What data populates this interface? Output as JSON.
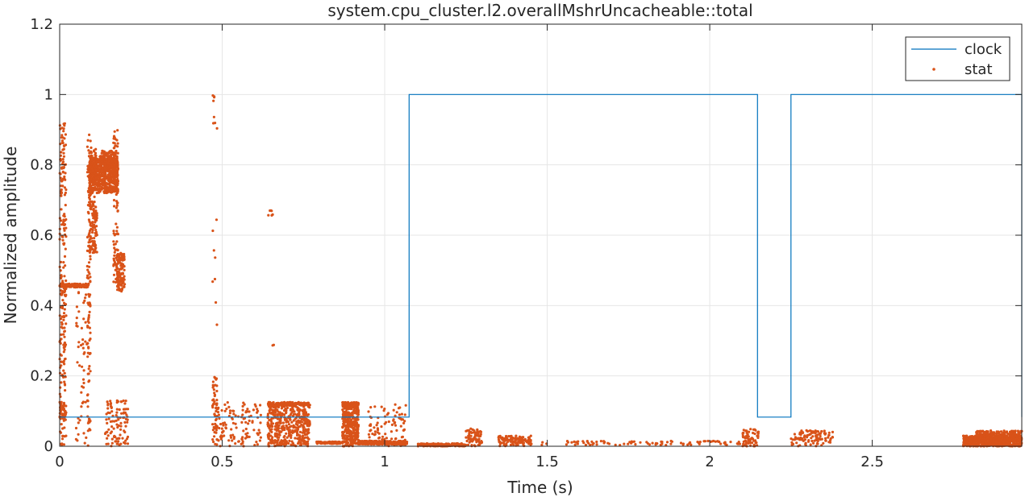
{
  "chart_data": {
    "type": "line",
    "title": "system.cpu_cluster.l2.overallMshrUncacheable::total",
    "xlabel": "Time (s)",
    "ylabel": "Normalized amplitude",
    "xlim": [
      0,
      2.96
    ],
    "ylim": [
      0,
      1.2
    ],
    "x_ticks": [
      0,
      0.5,
      1,
      1.5,
      2,
      2.5
    ],
    "x_tick_labels": [
      "0",
      "0.5",
      "1",
      "1.5",
      "2",
      "2.5"
    ],
    "y_ticks": [
      0,
      0.2,
      0.4,
      0.6,
      0.8,
      1,
      1.2
    ],
    "y_tick_labels": [
      "0",
      "0.2",
      "0.4",
      "0.6",
      "0.8",
      "1",
      "1.2"
    ],
    "grid": true,
    "legend": {
      "location": "top-right",
      "entries": [
        "clock",
        "stat"
      ]
    },
    "colors": {
      "clock": "#0072bd",
      "stat": "#d95319",
      "grid": "#e6e6e6",
      "axes": "#262626"
    },
    "series": [
      {
        "name": "clock",
        "style": "step-line",
        "points": [
          [
            0,
            0.083
          ],
          [
            1.075,
            0.083
          ],
          [
            1.075,
            1.0
          ],
          [
            2.147,
            1.0
          ],
          [
            2.147,
            0.083
          ],
          [
            2.25,
            0.083
          ],
          [
            2.25,
            1.0
          ],
          [
            2.96,
            1.0
          ],
          [
            2.96,
            0.083
          ]
        ]
      },
      {
        "name": "stat",
        "style": "markers",
        "clusters": [
          {
            "x": [
              0.0,
              0.02
            ],
            "y": [
              0.0,
              0.92
            ],
            "n": 240
          },
          {
            "x": [
              0.0,
              0.09
            ],
            "y": [
              0.452,
              0.462
            ],
            "n": 140
          },
          {
            "x": [
              0.0,
              0.02
            ],
            "y": [
              0.08,
              0.12
            ],
            "n": 40
          },
          {
            "x": [
              0.05,
              0.09
            ],
            "y": [
              0.0,
              0.45
            ],
            "n": 60
          },
          {
            "x": [
              0.085,
              0.095
            ],
            "y": [
              0.0,
              0.92
            ],
            "n": 90
          },
          {
            "x": [
              0.09,
              0.115
            ],
            "y": [
              0.55,
              0.85
            ],
            "n": 200
          },
          {
            "x": [
              0.09,
              0.18
            ],
            "y": [
              0.72,
              0.82
            ],
            "n": 600
          },
          {
            "x": [
              0.12,
              0.18
            ],
            "y": [
              0.78,
              0.84
            ],
            "n": 120
          },
          {
            "x": [
              0.165,
              0.18
            ],
            "y": [
              0.46,
              0.9
            ],
            "n": 90
          },
          {
            "x": [
              0.175,
              0.2
            ],
            "y": [
              0.44,
              0.55
            ],
            "n": 120
          },
          {
            "x": [
              0.14,
              0.21
            ],
            "y": [
              0.0,
              0.13
            ],
            "n": 100
          },
          {
            "x": [
              0.47,
              0.485
            ],
            "y": [
              0.0,
              0.2
            ],
            "n": 50
          },
          {
            "x": [
              0.47,
              0.485
            ],
            "y": [
              0.9,
              1.0
            ],
            "n": 8
          },
          {
            "x": [
              0.47,
              0.485
            ],
            "y": [
              0.33,
              0.66
            ],
            "n": 8
          },
          {
            "x": [
              0.48,
              0.62
            ],
            "y": [
              0.0,
              0.125
            ],
            "n": 120
          },
          {
            "x": [
              0.64,
              0.66
            ],
            "y": [
              0.65,
              0.68
            ],
            "n": 6
          },
          {
            "x": [
              0.64,
              0.66
            ],
            "y": [
              0.28,
              0.29
            ],
            "n": 2
          },
          {
            "x": [
              0.64,
              0.77
            ],
            "y": [
              0.0,
              0.125
            ],
            "n": 450
          },
          {
            "x": [
              0.64,
              0.77
            ],
            "y": [
              0.115,
              0.125
            ],
            "n": 100
          },
          {
            "x": [
              0.79,
              0.87
            ],
            "y": [
              0.007,
              0.013
            ],
            "n": 90
          },
          {
            "x": [
              0.87,
              0.92
            ],
            "y": [
              0.0,
              0.125
            ],
            "n": 350
          },
          {
            "x": [
              0.87,
              0.92
            ],
            "y": [
              0.115,
              0.125
            ],
            "n": 60
          },
          {
            "x": [
              0.92,
              1.07
            ],
            "y": [
              0.005,
              0.015
            ],
            "n": 260
          },
          {
            "x": [
              0.95,
              1.07
            ],
            "y": [
              0.0,
              0.12
            ],
            "n": 90
          },
          {
            "x": [
              1.1,
              1.25
            ],
            "y": [
              0.0,
              0.008
            ],
            "n": 200
          },
          {
            "x": [
              1.25,
              1.3
            ],
            "y": [
              0.0,
              0.05
            ],
            "n": 70
          },
          {
            "x": [
              1.35,
              1.45
            ],
            "y": [
              0.0,
              0.03
            ],
            "n": 120
          },
          {
            "x": [
              1.45,
              2.1
            ],
            "y": [
              0.003,
              0.015
            ],
            "n": 90
          },
          {
            "x": [
              2.1,
              2.15
            ],
            "y": [
              0.0,
              0.05
            ],
            "n": 60
          },
          {
            "x": [
              2.25,
              2.28
            ],
            "y": [
              0.0,
              0.04
            ],
            "n": 20
          },
          {
            "x": [
              2.28,
              2.38
            ],
            "y": [
              0.0,
              0.045
            ],
            "n": 90
          },
          {
            "x": [
              2.78,
              2.96
            ],
            "y": [
              0.0,
              0.03
            ],
            "n": 700
          },
          {
            "x": [
              2.82,
              2.96
            ],
            "y": [
              0.03,
              0.045
            ],
            "n": 100
          }
        ]
      }
    ]
  }
}
